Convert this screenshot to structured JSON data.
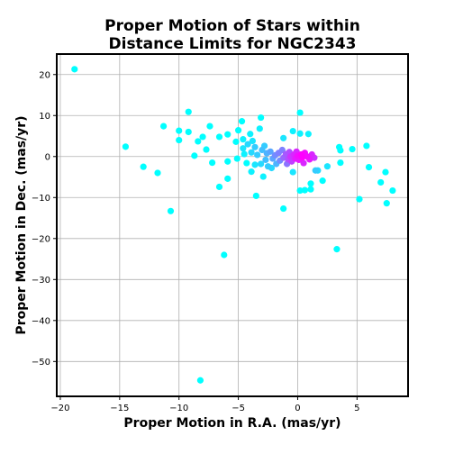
{
  "chart_data": {
    "type": "scatter",
    "title": [
      "Proper Motion of Stars within",
      "Distance Limits for NGC2343"
    ],
    "xlabel": "Proper Motion in R.A. (mas/yr)",
    "ylabel": "Proper Motion in Dec. (mas/yr)",
    "xlim": [
      -20.3,
      9.3
    ],
    "ylim": [
      -58.5,
      25.0
    ],
    "xticks": [
      -20,
      -15,
      -10,
      -5,
      0,
      5
    ],
    "yticks": [
      20,
      10,
      0,
      -10,
      -20,
      -30,
      -40,
      -50
    ],
    "grid": true,
    "color_scale": [
      "#00ffff",
      "#ff00ff"
    ],
    "points": [
      {
        "x": -18.8,
        "y": 21.3,
        "c": 0.0
      },
      {
        "x": -14.5,
        "y": 2.4,
        "c": 0.0
      },
      {
        "x": -13.0,
        "y": -2.5,
        "c": 0.0
      },
      {
        "x": -11.8,
        "y": -4.0,
        "c": 0.0
      },
      {
        "x": -11.3,
        "y": 7.4,
        "c": 0.0
      },
      {
        "x": -10.7,
        "y": -13.3,
        "c": 0.0
      },
      {
        "x": -10.0,
        "y": 6.3,
        "c": 0.0
      },
      {
        "x": -10.0,
        "y": 4.0,
        "c": 0.0
      },
      {
        "x": -9.2,
        "y": 10.9,
        "c": 0.0
      },
      {
        "x": -9.2,
        "y": 6.0,
        "c": 0.0
      },
      {
        "x": -8.7,
        "y": 0.2,
        "c": 0.0
      },
      {
        "x": -8.4,
        "y": 3.7,
        "c": 0.0
      },
      {
        "x": -8.0,
        "y": 4.8,
        "c": 0.0
      },
      {
        "x": -7.7,
        "y": 1.7,
        "c": 0.0
      },
      {
        "x": -7.4,
        "y": 7.4,
        "c": 0.0
      },
      {
        "x": -7.2,
        "y": -1.5,
        "c": 0.0
      },
      {
        "x": -6.6,
        "y": 4.8,
        "c": 0.0
      },
      {
        "x": -6.6,
        "y": -7.4,
        "c": 0.0
      },
      {
        "x": -5.9,
        "y": -1.2,
        "c": 0.0
      },
      {
        "x": -5.9,
        "y": -5.4,
        "c": 0.0
      },
      {
        "x": -5.9,
        "y": 5.4,
        "c": 0.0
      },
      {
        "x": -6.2,
        "y": -24.0,
        "c": 0.0
      },
      {
        "x": -8.2,
        "y": -54.6,
        "c": 0.0
      },
      {
        "x": -5.2,
        "y": 3.6,
        "c": 0.0
      },
      {
        "x": -5.1,
        "y": -0.5,
        "c": 0.0
      },
      {
        "x": -5.0,
        "y": 6.4,
        "c": 0.0
      },
      {
        "x": -4.7,
        "y": 8.6,
        "c": 0.0
      },
      {
        "x": -4.6,
        "y": 4.2,
        "c": 0.05
      },
      {
        "x": -4.6,
        "y": 2.0,
        "c": 0.1
      },
      {
        "x": -4.5,
        "y": 0.6,
        "c": 0.05
      },
      {
        "x": -4.3,
        "y": -1.6,
        "c": 0.0
      },
      {
        "x": -4.2,
        "y": 3.0,
        "c": 0.15
      },
      {
        "x": -4.0,
        "y": 5.5,
        "c": 0.05
      },
      {
        "x": -3.9,
        "y": -3.7,
        "c": 0.05
      },
      {
        "x": -3.9,
        "y": 1.0,
        "c": 0.15
      },
      {
        "x": -3.8,
        "y": 3.8,
        "c": 0.1
      },
      {
        "x": -3.6,
        "y": -2.0,
        "c": 0.1
      },
      {
        "x": -3.6,
        "y": 2.3,
        "c": 0.2
      },
      {
        "x": -3.5,
        "y": -9.6,
        "c": 0.0
      },
      {
        "x": -3.4,
        "y": 0.4,
        "c": 0.2
      },
      {
        "x": -3.2,
        "y": 6.8,
        "c": 0.05
      },
      {
        "x": -3.1,
        "y": 9.5,
        "c": 0.0
      },
      {
        "x": -3.1,
        "y": -1.8,
        "c": 0.15
      },
      {
        "x": -3.0,
        "y": 1.6,
        "c": 0.25
      },
      {
        "x": -2.9,
        "y": -4.9,
        "c": 0.05
      },
      {
        "x": -2.8,
        "y": 2.6,
        "c": 0.2
      },
      {
        "x": -2.7,
        "y": -0.8,
        "c": 0.25
      },
      {
        "x": -2.6,
        "y": 0.8,
        "c": 0.3
      },
      {
        "x": -2.5,
        "y": -2.4,
        "c": 0.2
      },
      {
        "x": -2.3,
        "y": 1.2,
        "c": 0.35
      },
      {
        "x": -2.2,
        "y": -2.8,
        "c": 0.15
      },
      {
        "x": -2.1,
        "y": -0.5,
        "c": 0.35
      },
      {
        "x": -1.9,
        "y": 0.3,
        "c": 0.45
      },
      {
        "x": -1.8,
        "y": -1.8,
        "c": 0.3
      },
      {
        "x": -1.6,
        "y": 0.9,
        "c": 0.5
      },
      {
        "x": -1.5,
        "y": -1.0,
        "c": 0.45
      },
      {
        "x": -1.3,
        "y": 1.6,
        "c": 0.5
      },
      {
        "x": -1.2,
        "y": -0.3,
        "c": 0.6
      },
      {
        "x": -1.2,
        "y": 4.5,
        "c": 0.1
      },
      {
        "x": -1.2,
        "y": -12.7,
        "c": 0.0
      },
      {
        "x": -1.0,
        "y": 0.6,
        "c": 0.65
      },
      {
        "x": -0.9,
        "y": -1.8,
        "c": 0.55
      },
      {
        "x": -0.8,
        "y": -0.7,
        "c": 0.7
      },
      {
        "x": -0.7,
        "y": 1.1,
        "c": 0.7
      },
      {
        "x": -0.6,
        "y": 0.0,
        "c": 0.8
      },
      {
        "x": -0.5,
        "y": -1.2,
        "c": 0.75
      },
      {
        "x": -0.4,
        "y": 6.2,
        "c": 0.05
      },
      {
        "x": -0.4,
        "y": -3.8,
        "c": 0.1
      },
      {
        "x": -0.3,
        "y": 0.5,
        "c": 0.85
      },
      {
        "x": -0.2,
        "y": -0.5,
        "c": 0.9
      },
      {
        "x": -0.1,
        "y": 1.2,
        "c": 0.85
      },
      {
        "x": 0.0,
        "y": 0.2,
        "c": 0.95
      },
      {
        "x": 0.1,
        "y": -0.8,
        "c": 0.9
      },
      {
        "x": 0.2,
        "y": 10.7,
        "c": 0.0
      },
      {
        "x": 0.2,
        "y": 5.6,
        "c": 0.05
      },
      {
        "x": 0.2,
        "y": -8.3,
        "c": 0.0
      },
      {
        "x": 0.3,
        "y": 0.5,
        "c": 1.0
      },
      {
        "x": 0.4,
        "y": -0.2,
        "c": 1.0
      },
      {
        "x": 0.5,
        "y": -1.6,
        "c": 0.85
      },
      {
        "x": 0.6,
        "y": 0.9,
        "c": 0.95
      },
      {
        "x": 0.6,
        "y": -8.2,
        "c": 0.0
      },
      {
        "x": 0.8,
        "y": 0.0,
        "c": 0.95
      },
      {
        "x": 0.9,
        "y": 5.5,
        "c": 0.05
      },
      {
        "x": 1.0,
        "y": -0.7,
        "c": 0.9
      },
      {
        "x": 1.1,
        "y": -6.6,
        "c": 0.0
      },
      {
        "x": 1.1,
        "y": -8.0,
        "c": 0.0
      },
      {
        "x": 1.2,
        "y": 0.5,
        "c": 0.85
      },
      {
        "x": 1.4,
        "y": -0.3,
        "c": 0.8
      },
      {
        "x": 1.5,
        "y": -3.4,
        "c": 0.2
      },
      {
        "x": 1.7,
        "y": -3.4,
        "c": 0.15
      },
      {
        "x": 2.1,
        "y": -5.9,
        "c": 0.0
      },
      {
        "x": 2.5,
        "y": -2.4,
        "c": 0.1
      },
      {
        "x": 3.3,
        "y": -22.6,
        "c": 0.0
      },
      {
        "x": 3.5,
        "y": 2.3,
        "c": 0.0
      },
      {
        "x": 3.6,
        "y": 1.5,
        "c": 0.0
      },
      {
        "x": 3.6,
        "y": -1.5,
        "c": 0.0
      },
      {
        "x": 4.6,
        "y": 1.8,
        "c": 0.0
      },
      {
        "x": 5.2,
        "y": -10.4,
        "c": 0.0
      },
      {
        "x": 5.8,
        "y": 2.6,
        "c": 0.0
      },
      {
        "x": 6.0,
        "y": -2.6,
        "c": 0.0
      },
      {
        "x": 7.0,
        "y": -6.3,
        "c": 0.0
      },
      {
        "x": 7.4,
        "y": -3.8,
        "c": 0.0
      },
      {
        "x": 7.5,
        "y": -11.4,
        "c": 0.0
      },
      {
        "x": 8.0,
        "y": -8.3,
        "c": 0.0
      }
    ]
  }
}
